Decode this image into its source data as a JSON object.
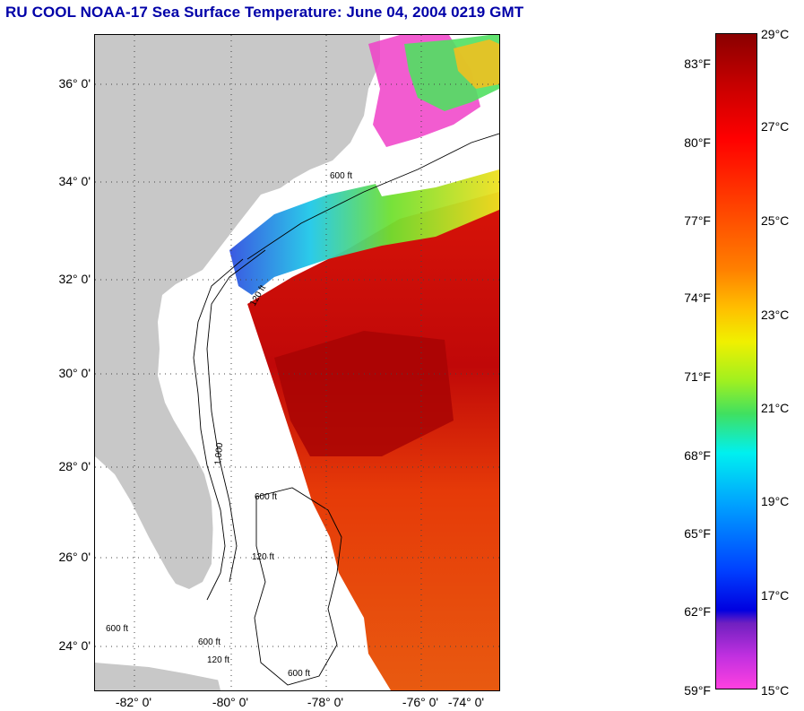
{
  "title": "RU COOL  NOAA-17  Sea Surface Temperature:  June 04, 2004 0219 GMT",
  "map": {
    "lat_labels": [
      "36° 0'",
      "34° 0'",
      "32° 0'",
      "30° 0'",
      "28° 0'",
      "26° 0'",
      "24° 0'"
    ],
    "lon_labels": [
      "-82° 0'",
      "-80° 0'",
      "-78° 0'",
      "-76° 0'",
      "-74° 0'"
    ],
    "contour_labels": [
      "120 ft",
      "600 ft",
      "1,000",
      "600 ft",
      "120 ft",
      "600 ft",
      "600 ft",
      "120 ft",
      "600 ft"
    ]
  },
  "colorbar": {
    "fahrenheit": [
      "83°F",
      "80°F",
      "77°F",
      "74°F",
      "71°F",
      "68°F",
      "65°F",
      "62°F",
      "59°F"
    ],
    "celsius": [
      "29°C",
      "27°C",
      "25°C",
      "23°C",
      "21°C",
      "19°C",
      "17°C",
      "15°C"
    ]
  },
  "colors": {
    "title": "#0000a8",
    "land": "#c8c8c8",
    "warm_water": "#e0200a",
    "hot_water": "#a80000"
  }
}
